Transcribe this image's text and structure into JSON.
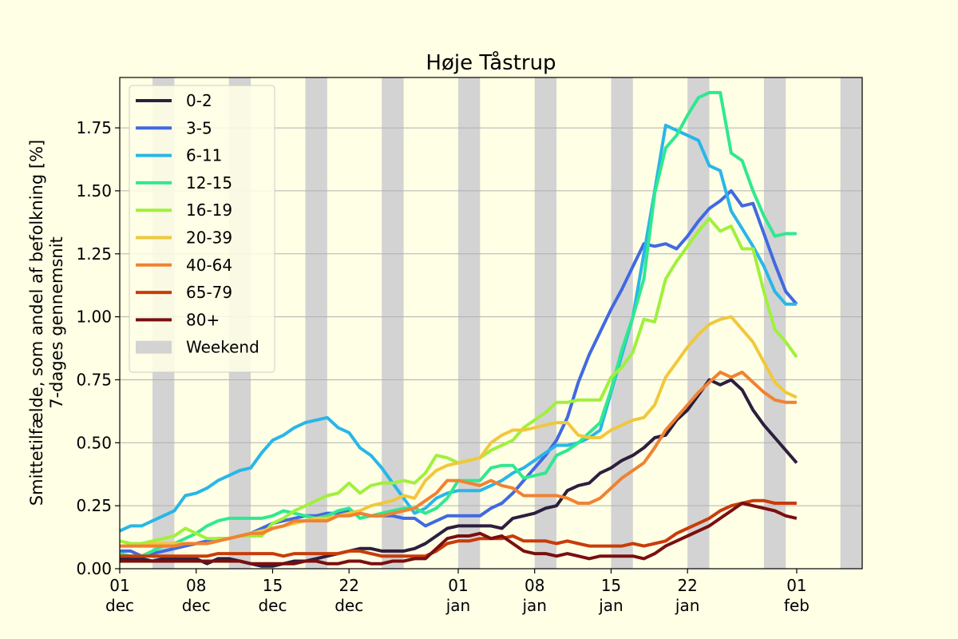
{
  "chart_data": {
    "type": "line",
    "title": "Høje Tåstrup",
    "ylabel_line1": "Smittetilfælde, som andel af befolkning [%]",
    "ylabel_line2": "7-dages gennemsnit",
    "xlabel": "",
    "x_start": "2021-12-01",
    "x_end": "2022-02-07",
    "ylim": [
      0,
      1.95
    ],
    "yticks": [
      {
        "value": 0.0,
        "label": "0.00"
      },
      {
        "value": 0.25,
        "label": "0.25"
      },
      {
        "value": 0.5,
        "label": "0.50"
      },
      {
        "value": 0.75,
        "label": "0.75"
      },
      {
        "value": 1.0,
        "label": "1.00"
      },
      {
        "value": 1.25,
        "label": "1.25"
      },
      {
        "value": 1.5,
        "label": "1.50"
      },
      {
        "value": 1.75,
        "label": "1.75"
      }
    ],
    "xticks": [
      {
        "date": "2021-12-01",
        "line1": "01",
        "line2": "dec"
      },
      {
        "date": "2021-12-08",
        "line1": "08",
        "line2": "dec"
      },
      {
        "date": "2021-12-15",
        "line1": "15",
        "line2": "dec"
      },
      {
        "date": "2021-12-22",
        "line1": "22",
        "line2": "dec"
      },
      {
        "date": "2022-01-01",
        "line1": "01",
        "line2": "jan"
      },
      {
        "date": "2022-01-08",
        "line1": "08",
        "line2": "jan"
      },
      {
        "date": "2022-01-15",
        "line1": "15",
        "line2": "jan"
      },
      {
        "date": "2022-01-22",
        "line1": "22",
        "line2": "jan"
      },
      {
        "date": "2022-02-01",
        "line1": "01",
        "line2": "feb"
      }
    ],
    "grid": "horizontal",
    "legend_position": "top-left",
    "weekend_label": "Weekend",
    "weekend_color": "#d3d3d3",
    "weekends": [
      [
        "2021-12-04",
        "2021-12-06"
      ],
      [
        "2021-12-11",
        "2021-12-13"
      ],
      [
        "2021-12-18",
        "2021-12-20"
      ],
      [
        "2021-12-25",
        "2021-12-27"
      ],
      [
        "2022-01-01",
        "2022-01-03"
      ],
      [
        "2022-01-08",
        "2022-01-10"
      ],
      [
        "2022-01-15",
        "2022-01-17"
      ],
      [
        "2022-01-22",
        "2022-01-24"
      ],
      [
        "2022-01-29",
        "2022-01-31"
      ],
      [
        "2022-02-05",
        "2022-02-07"
      ]
    ],
    "x": [
      "2021-12-01",
      "2021-12-02",
      "2021-12-03",
      "2021-12-04",
      "2021-12-05",
      "2021-12-06",
      "2021-12-07",
      "2021-12-08",
      "2021-12-09",
      "2021-12-10",
      "2021-12-11",
      "2021-12-12",
      "2021-12-13",
      "2021-12-14",
      "2021-12-15",
      "2021-12-16",
      "2021-12-17",
      "2021-12-18",
      "2021-12-19",
      "2021-12-20",
      "2021-12-21",
      "2021-12-22",
      "2021-12-23",
      "2021-12-24",
      "2021-12-25",
      "2021-12-26",
      "2021-12-27",
      "2021-12-28",
      "2021-12-29",
      "2021-12-30",
      "2021-12-31",
      "2022-01-01",
      "2022-01-02",
      "2022-01-03",
      "2022-01-04",
      "2022-01-05",
      "2022-01-06",
      "2022-01-07",
      "2022-01-08",
      "2022-01-09",
      "2022-01-10",
      "2022-01-11",
      "2022-01-12",
      "2022-01-13",
      "2022-01-14",
      "2022-01-15",
      "2022-01-16",
      "2022-01-17",
      "2022-01-18",
      "2022-01-19",
      "2022-01-20",
      "2022-01-21",
      "2022-01-22",
      "2022-01-23",
      "2022-01-24",
      "2022-01-25",
      "2022-01-26",
      "2022-01-27",
      "2022-01-28",
      "2022-01-29",
      "2022-01-30",
      "2022-01-31",
      "2022-02-01"
    ],
    "series": [
      {
        "name": "0-2",
        "color": "#2d1e3e",
        "values": [
          0.04,
          0.04,
          0.04,
          0.03,
          0.04,
          0.04,
          0.04,
          0.04,
          0.02,
          0.04,
          0.04,
          0.03,
          0.02,
          0.01,
          0.01,
          0.02,
          0.03,
          0.03,
          0.04,
          0.05,
          0.06,
          0.07,
          0.08,
          0.08,
          0.07,
          0.07,
          0.07,
          0.08,
          0.1,
          0.13,
          0.16,
          0.17,
          0.17,
          0.17,
          0.17,
          0.16,
          0.2,
          0.21,
          0.22,
          0.24,
          0.25,
          0.31,
          0.33,
          0.34,
          0.38,
          0.4,
          0.43,
          0.45,
          0.48,
          0.52,
          0.53,
          0.59,
          0.63,
          0.69,
          0.75,
          0.73,
          0.75,
          0.71,
          0.63,
          0.57,
          0.52,
          0.47,
          0.42
        ]
      },
      {
        "name": "3-5",
        "color": "#4169e1",
        "values": [
          0.07,
          0.07,
          0.05,
          0.06,
          0.07,
          0.08,
          0.09,
          0.1,
          0.11,
          0.12,
          0.12,
          0.13,
          0.14,
          0.16,
          0.18,
          0.19,
          0.2,
          0.21,
          0.21,
          0.22,
          0.22,
          0.23,
          0.22,
          0.21,
          0.21,
          0.21,
          0.2,
          0.2,
          0.17,
          0.19,
          0.21,
          0.21,
          0.21,
          0.21,
          0.24,
          0.26,
          0.3,
          0.35,
          0.4,
          0.45,
          0.51,
          0.6,
          0.74,
          0.85,
          0.94,
          1.03,
          1.11,
          1.2,
          1.29,
          1.28,
          1.29,
          1.27,
          1.32,
          1.38,
          1.43,
          1.46,
          1.5,
          1.44,
          1.45,
          1.33,
          1.21,
          1.1,
          1.05
        ]
      },
      {
        "name": "6-11",
        "color": "#29b6e8",
        "values": [
          0.15,
          0.17,
          0.17,
          0.19,
          0.21,
          0.23,
          0.29,
          0.3,
          0.32,
          0.35,
          0.37,
          0.39,
          0.4,
          0.46,
          0.51,
          0.53,
          0.56,
          0.58,
          0.59,
          0.6,
          0.56,
          0.54,
          0.48,
          0.45,
          0.4,
          0.34,
          0.28,
          0.22,
          0.24,
          0.28,
          0.3,
          0.31,
          0.31,
          0.31,
          0.33,
          0.35,
          0.38,
          0.4,
          0.43,
          0.46,
          0.49,
          0.49,
          0.5,
          0.52,
          0.55,
          0.7,
          0.85,
          1.0,
          1.25,
          1.5,
          1.76,
          1.74,
          1.72,
          1.7,
          1.6,
          1.58,
          1.42,
          1.35,
          1.28,
          1.2,
          1.1,
          1.05,
          1.05
        ]
      },
      {
        "name": "12-15",
        "color": "#30e890",
        "values": [
          0.06,
          0.05,
          0.05,
          0.07,
          0.09,
          0.1,
          0.12,
          0.14,
          0.17,
          0.19,
          0.2,
          0.2,
          0.2,
          0.2,
          0.21,
          0.23,
          0.22,
          0.21,
          0.2,
          0.21,
          0.23,
          0.24,
          0.2,
          0.21,
          0.22,
          0.23,
          0.24,
          0.24,
          0.22,
          0.24,
          0.28,
          0.35,
          0.35,
          0.35,
          0.4,
          0.41,
          0.41,
          0.36,
          0.37,
          0.38,
          0.45,
          0.47,
          0.5,
          0.54,
          0.58,
          0.71,
          0.87,
          1.0,
          1.15,
          1.49,
          1.67,
          1.72,
          1.8,
          1.87,
          1.89,
          1.89,
          1.65,
          1.62,
          1.5,
          1.4,
          1.32,
          1.33,
          1.33
        ]
      },
      {
        "name": "16-19",
        "color": "#a0f03c",
        "values": [
          0.11,
          0.1,
          0.1,
          0.11,
          0.12,
          0.13,
          0.16,
          0.14,
          0.12,
          0.12,
          0.12,
          0.13,
          0.13,
          0.13,
          0.18,
          0.2,
          0.23,
          0.25,
          0.27,
          0.29,
          0.3,
          0.34,
          0.3,
          0.33,
          0.34,
          0.34,
          0.35,
          0.34,
          0.38,
          0.45,
          0.44,
          0.42,
          0.43,
          0.44,
          0.47,
          0.49,
          0.51,
          0.56,
          0.59,
          0.62,
          0.66,
          0.66,
          0.67,
          0.67,
          0.67,
          0.76,
          0.8,
          0.86,
          0.99,
          0.98,
          1.15,
          1.22,
          1.28,
          1.34,
          1.39,
          1.34,
          1.36,
          1.27,
          1.27,
          1.1,
          0.95,
          0.9,
          0.84
        ]
      },
      {
        "name": "20-39",
        "color": "#f0c83c",
        "values": [
          0.09,
          0.09,
          0.09,
          0.1,
          0.1,
          0.1,
          0.1,
          0.1,
          0.1,
          0.11,
          0.12,
          0.13,
          0.14,
          0.15,
          0.16,
          0.17,
          0.18,
          0.19,
          0.2,
          0.2,
          0.21,
          0.22,
          0.23,
          0.25,
          0.26,
          0.27,
          0.29,
          0.28,
          0.35,
          0.39,
          0.41,
          0.42,
          0.43,
          0.44,
          0.5,
          0.53,
          0.55,
          0.55,
          0.56,
          0.57,
          0.58,
          0.58,
          0.53,
          0.52,
          0.52,
          0.55,
          0.57,
          0.59,
          0.6,
          0.65,
          0.76,
          0.82,
          0.88,
          0.93,
          0.97,
          0.99,
          1.0,
          0.95,
          0.9,
          0.82,
          0.74,
          0.7,
          0.68
        ]
      },
      {
        "name": "40-64",
        "color": "#f08232",
        "values": [
          0.09,
          0.09,
          0.09,
          0.09,
          0.09,
          0.09,
          0.1,
          0.1,
          0.1,
          0.11,
          0.12,
          0.13,
          0.14,
          0.14,
          0.16,
          0.17,
          0.19,
          0.19,
          0.19,
          0.19,
          0.21,
          0.21,
          0.22,
          0.21,
          0.21,
          0.22,
          0.23,
          0.24,
          0.27,
          0.3,
          0.35,
          0.35,
          0.34,
          0.33,
          0.35,
          0.33,
          0.32,
          0.29,
          0.29,
          0.29,
          0.29,
          0.28,
          0.26,
          0.26,
          0.28,
          0.32,
          0.36,
          0.39,
          0.42,
          0.48,
          0.55,
          0.6,
          0.65,
          0.7,
          0.74,
          0.78,
          0.76,
          0.78,
          0.74,
          0.7,
          0.67,
          0.66,
          0.66
        ]
      },
      {
        "name": "65-79",
        "color": "#c83c0a",
        "values": [
          0.05,
          0.05,
          0.05,
          0.05,
          0.05,
          0.05,
          0.05,
          0.05,
          0.05,
          0.06,
          0.06,
          0.06,
          0.06,
          0.06,
          0.06,
          0.05,
          0.06,
          0.06,
          0.06,
          0.06,
          0.06,
          0.07,
          0.07,
          0.06,
          0.05,
          0.05,
          0.05,
          0.05,
          0.05,
          0.07,
          0.1,
          0.11,
          0.11,
          0.12,
          0.12,
          0.12,
          0.13,
          0.11,
          0.11,
          0.11,
          0.1,
          0.11,
          0.1,
          0.09,
          0.09,
          0.09,
          0.09,
          0.1,
          0.09,
          0.1,
          0.11,
          0.14,
          0.16,
          0.18,
          0.2,
          0.23,
          0.25,
          0.26,
          0.27,
          0.27,
          0.26,
          0.26,
          0.26
        ]
      },
      {
        "name": "80+",
        "color": "#7a0f0f",
        "values": [
          0.03,
          0.03,
          0.03,
          0.03,
          0.03,
          0.03,
          0.03,
          0.03,
          0.03,
          0.03,
          0.03,
          0.03,
          0.02,
          0.02,
          0.02,
          0.02,
          0.02,
          0.03,
          0.03,
          0.02,
          0.02,
          0.03,
          0.03,
          0.02,
          0.02,
          0.03,
          0.03,
          0.04,
          0.04,
          0.08,
          0.12,
          0.13,
          0.13,
          0.14,
          0.12,
          0.13,
          0.1,
          0.07,
          0.06,
          0.06,
          0.05,
          0.06,
          0.05,
          0.04,
          0.05,
          0.05,
          0.05,
          0.05,
          0.04,
          0.06,
          0.09,
          0.11,
          0.13,
          0.15,
          0.17,
          0.2,
          0.23,
          0.26,
          0.25,
          0.24,
          0.23,
          0.21,
          0.2
        ]
      }
    ]
  }
}
